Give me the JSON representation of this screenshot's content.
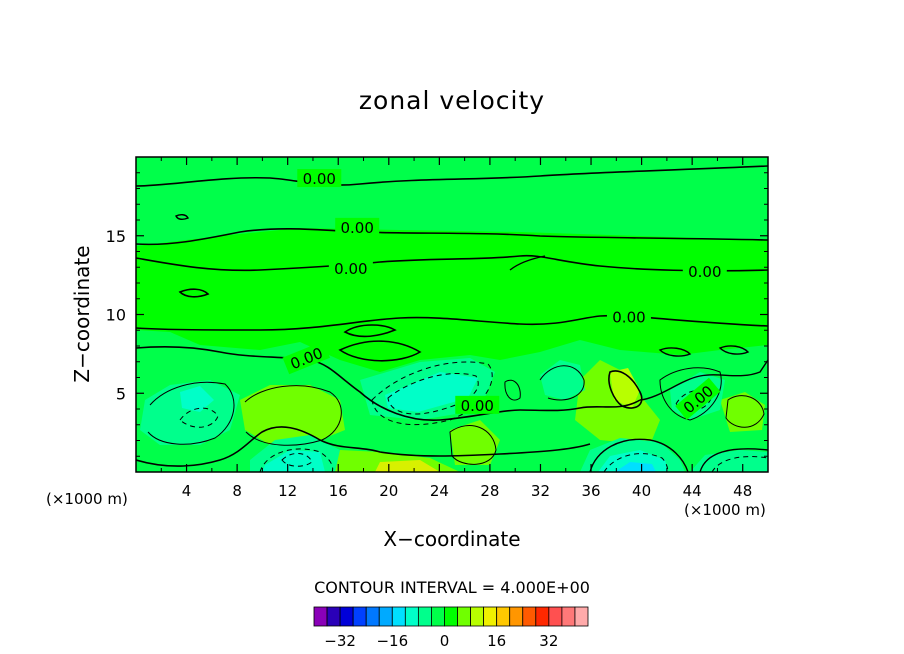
{
  "chart_data": {
    "type": "heatmap",
    "title": "zonal velocity",
    "xlabel": "X−coordinate",
    "ylabel": "Z−coordinate",
    "x_units": "(×1000 m)",
    "y_units": "(×1000 m)",
    "xlim": [
      0,
      50
    ],
    "ylim": [
      0,
      20
    ],
    "x_ticks": [
      "4",
      "8",
      "12",
      "16",
      "20",
      "24",
      "28",
      "32",
      "36",
      "40",
      "44",
      "48"
    ],
    "y_ticks": [
      "5",
      "10",
      "15"
    ],
    "contour_interval": "CONTOUR INTERVAL = 4.000E+00",
    "contour_labels": [
      "0.00",
      "0.00",
      "0.00",
      "0.00",
      "0.00",
      "0.00",
      "0.00",
      "0.00",
      "0.00"
    ],
    "colorbar": {
      "ticks": [
        "−32",
        "−16",
        "0",
        "16",
        "32"
      ],
      "colors": [
        "#8a00b8",
        "#2a00b8",
        "#0000d8",
        "#0040ff",
        "#0078ff",
        "#00aaff",
        "#00e0ff",
        "#00ffc8",
        "#00ff8c",
        "#00ff4a",
        "#00ff00",
        "#70ff00",
        "#b8ff00",
        "#f0f000",
        "#ffc800",
        "#ff9600",
        "#ff5a00",
        "#ff2800",
        "#ff5050",
        "#ff7878",
        "#ffaaaa"
      ]
    },
    "levels": [
      {
        "x": 4,
        "y": 4.8,
        "value": -4
      },
      {
        "x": 4,
        "y": 3.0,
        "value": -8
      },
      {
        "x": 13,
        "y": 1.5,
        "value": -8
      },
      {
        "x": 14,
        "y": 1.2,
        "value": -12
      },
      {
        "x": 25,
        "y": 5.0,
        "value": -8
      },
      {
        "x": 25,
        "y": 5.0,
        "value": -12
      },
      {
        "x": 30,
        "y": 5.5,
        "value": -4
      },
      {
        "x": 34,
        "y": 6.0,
        "value": -8
      },
      {
        "x": 39,
        "y": 0.5,
        "value": -16
      },
      {
        "x": 38,
        "y": 5.5,
        "value": 8
      },
      {
        "x": 22,
        "y": 0.5,
        "value": 8
      },
      {
        "x": 13,
        "y": 4.5,
        "value": 4
      },
      {
        "x": 44,
        "y": 4.5,
        "value": -8
      },
      {
        "x": 47,
        "y": 4.0,
        "value": 4
      }
    ]
  }
}
